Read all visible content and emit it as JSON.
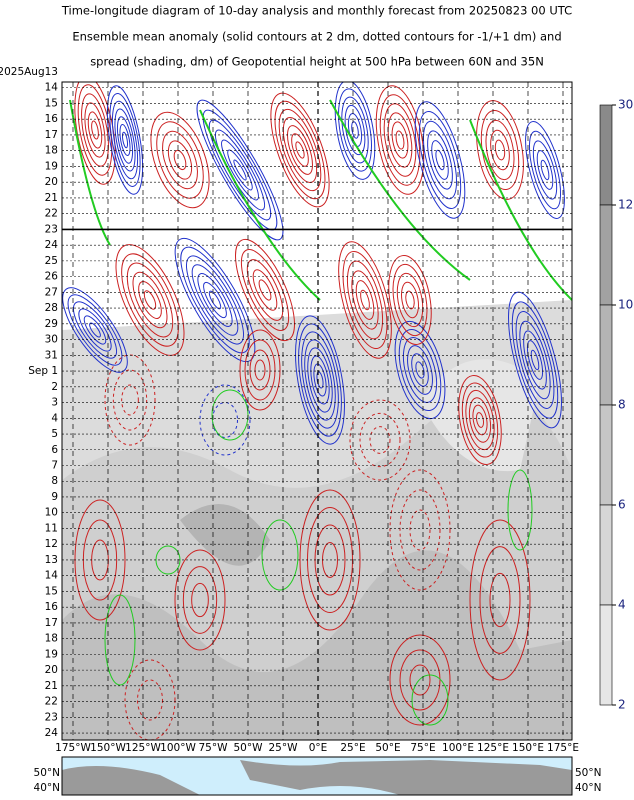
{
  "title": [
    "Time-longitude diagram of 10-day analysis and monthly forecast from 20250823 00 UTC",
    "Ensemble mean anomaly (solid contours at 2 dm, dotted contours for -1/+1 dm) and",
    "spread (shading, dm) of Geopotential height at 500 hPa between 60N and 35N"
  ],
  "y_axis": {
    "labels": [
      "2025Aug13",
      "14",
      "15",
      "16",
      {
        "text": "17",
        "color": "#e00000"
      },
      "18",
      "19",
      "20",
      "21",
      "22",
      "23",
      {
        "text": "24",
        "color": "#e00000"
      },
      "25",
      "26",
      "27",
      "28",
      "29",
      "30",
      {
        "text": "31",
        "color": "#e00000"
      },
      "Sep 1",
      "2",
      "3",
      "4",
      "5",
      "6",
      {
        "text": "7",
        "color": "#e00000"
      },
      "8",
      "9",
      "10",
      "11",
      "12",
      "13",
      {
        "text": "14",
        "color": "#e00000"
      },
      "15",
      "16",
      "17",
      "18",
      "19",
      "20",
      {
        "text": "21",
        "color": "#e00000"
      },
      "22",
      "23",
      "24"
    ]
  },
  "x_axis": {
    "xlim": [
      -180,
      180
    ],
    "ticks": [
      {
        "value": -175,
        "label": "175°W"
      },
      {
        "value": -150,
        "label": "150°W"
      },
      {
        "value": -125,
        "label": "125°W"
      },
      {
        "value": -100,
        "label": "100°W"
      },
      {
        "value": -75,
        "label": "75°W"
      },
      {
        "value": -50,
        "label": "50°W"
      },
      {
        "value": -25,
        "label": "25°W"
      },
      {
        "value": 0,
        "label": "0°E"
      },
      {
        "value": 25,
        "label": "25°E"
      },
      {
        "value": 50,
        "label": "50°E"
      },
      {
        "value": 75,
        "label": "75°E"
      },
      {
        "value": 100,
        "label": "100°E"
      },
      {
        "value": 125,
        "label": "125°E"
      },
      {
        "value": 150,
        "label": "150°E"
      },
      {
        "value": 175,
        "label": "175°E"
      }
    ]
  },
  "colorbar": {
    "ticks": [
      30,
      12,
      10,
      8,
      6,
      4
    ],
    "bottom_tick": 2,
    "colors": [
      "#8a8a8a",
      "#a2a2a2",
      "#b4b4b4",
      "#c6c6c6",
      "#d6d6d6",
      "#e6e6e6"
    ]
  },
  "map": {
    "left_labels": [
      "50°N",
      "40°N"
    ],
    "right_labels": [
      "50°N",
      "40°N"
    ]
  }
}
